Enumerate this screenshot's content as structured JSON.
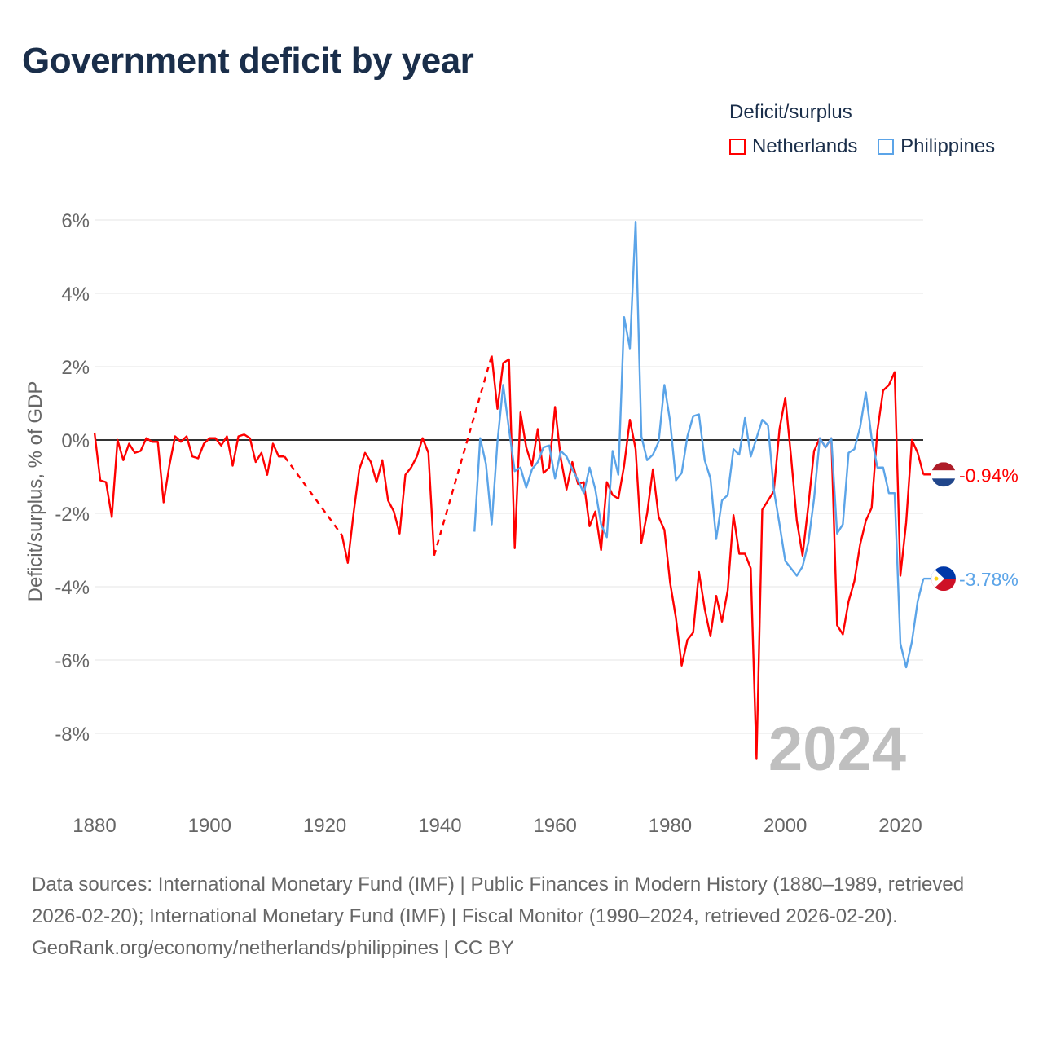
{
  "title": "Government deficit by year",
  "chart_data": {
    "type": "line",
    "title": "Government deficit by year",
    "ylabel": "Deficit/surplus, % of GDP",
    "xlabel": "",
    "xlim": [
      1880,
      2024
    ],
    "ylim": [
      -9.5,
      6.2
    ],
    "x_ticks": [
      "1880",
      "1900",
      "1920",
      "1940",
      "1960",
      "1980",
      "2000",
      "2020"
    ],
    "y_ticks": [
      "6%",
      "4%",
      "2%",
      "0%",
      "-2%",
      "-4%",
      "-6%",
      "-8%"
    ],
    "grid": true,
    "legend_title": "Deficit/surplus",
    "legend_position": "top-right",
    "year_watermark": "2024",
    "series": [
      {
        "name": "Netherlands",
        "color": "#ff0000",
        "end_label": "-0.94%",
        "points": [
          [
            1880,
            0.2
          ],
          [
            1881,
            -1.1
          ],
          [
            1882,
            -1.15
          ],
          [
            1883,
            -2.1
          ],
          [
            1884,
            0
          ],
          [
            1885,
            -0.55
          ],
          [
            1886,
            -0.1
          ],
          [
            1887,
            -0.35
          ],
          [
            1888,
            -0.3
          ],
          [
            1889,
            0.05
          ],
          [
            1890,
            -0.05
          ],
          [
            1891,
            -0.05
          ],
          [
            1892,
            -1.7
          ],
          [
            1893,
            -0.7
          ],
          [
            1894,
            0.1
          ],
          [
            1895,
            -0.05
          ],
          [
            1896,
            0.1
          ],
          [
            1897,
            -0.45
          ],
          [
            1898,
            -0.5
          ],
          [
            1899,
            -0.1
          ],
          [
            1900,
            0.05
          ],
          [
            1901,
            0.05
          ],
          [
            1902,
            -0.15
          ],
          [
            1903,
            0.1
          ],
          [
            1904,
            -0.7
          ],
          [
            1905,
            0.1
          ],
          [
            1906,
            0.15
          ],
          [
            1907,
            0.05
          ],
          [
            1908,
            -0.6
          ],
          [
            1909,
            -0.35
          ],
          [
            1910,
            -0.95
          ],
          [
            1911,
            -0.1
          ],
          [
            1912,
            -0.45
          ],
          [
            1913,
            -0.45
          ],
          [
            1923,
            -2.6
          ],
          [
            1924,
            -3.35
          ],
          [
            1925,
            -2.0
          ],
          [
            1926,
            -0.8
          ],
          [
            1927,
            -0.35
          ],
          [
            1928,
            -0.6
          ],
          [
            1929,
            -1.15
          ],
          [
            1930,
            -0.55
          ],
          [
            1931,
            -1.65
          ],
          [
            1932,
            -1.95
          ],
          [
            1933,
            -2.55
          ],
          [
            1934,
            -0.95
          ],
          [
            1935,
            -0.75
          ],
          [
            1936,
            -0.45
          ],
          [
            1937,
            0.05
          ],
          [
            1938,
            -0.35
          ],
          [
            1939,
            -3.15
          ],
          [
            1949,
            2.3
          ],
          [
            1950,
            0.85
          ],
          [
            1951,
            2.1
          ],
          [
            1952,
            2.2
          ],
          [
            1953,
            -2.95
          ],
          [
            1954,
            0.75
          ],
          [
            1955,
            -0.2
          ],
          [
            1956,
            -0.7
          ],
          [
            1957,
            0.3
          ],
          [
            1958,
            -0.9
          ],
          [
            1959,
            -0.75
          ],
          [
            1960,
            0.9
          ],
          [
            1961,
            -0.5
          ],
          [
            1962,
            -1.35
          ],
          [
            1963,
            -0.6
          ],
          [
            1964,
            -1.2
          ],
          [
            1965,
            -1.15
          ],
          [
            1966,
            -2.35
          ],
          [
            1967,
            -1.95
          ],
          [
            1968,
            -3.0
          ],
          [
            1969,
            -1.15
          ],
          [
            1970,
            -1.5
          ],
          [
            1971,
            -1.6
          ],
          [
            1972,
            -0.7
          ],
          [
            1973,
            0.55
          ],
          [
            1974,
            -0.25
          ],
          [
            1975,
            -2.8
          ],
          [
            1976,
            -2.0
          ],
          [
            1977,
            -0.8
          ],
          [
            1978,
            -2.1
          ],
          [
            1979,
            -2.45
          ],
          [
            1980,
            -3.9
          ],
          [
            1981,
            -4.85
          ],
          [
            1982,
            -6.15
          ],
          [
            1983,
            -5.45
          ],
          [
            1984,
            -5.25
          ],
          [
            1985,
            -3.6
          ],
          [
            1986,
            -4.6
          ],
          [
            1987,
            -5.35
          ],
          [
            1988,
            -4.25
          ],
          [
            1989,
            -4.95
          ],
          [
            1990,
            -4.1
          ],
          [
            1991,
            -2.05
          ],
          [
            1992,
            -3.1
          ],
          [
            1993,
            -3.1
          ],
          [
            1994,
            -3.5
          ],
          [
            1995,
            -8.7
          ],
          [
            1996,
            -1.9
          ],
          [
            1997,
            -1.65
          ],
          [
            1998,
            -1.4
          ],
          [
            1999,
            0.3
          ],
          [
            2000,
            1.15
          ],
          [
            2001,
            -0.45
          ],
          [
            2002,
            -2.2
          ],
          [
            2003,
            -3.15
          ],
          [
            2004,
            -1.8
          ],
          [
            2005,
            -0.3
          ],
          [
            2006,
            0.05
          ],
          [
            2007,
            -0.2
          ],
          [
            2008,
            0.05
          ],
          [
            2009,
            -5.05
          ],
          [
            2010,
            -5.3
          ],
          [
            2011,
            -4.4
          ],
          [
            2012,
            -3.85
          ],
          [
            2013,
            -2.85
          ],
          [
            2014,
            -2.2
          ],
          [
            2015,
            -1.85
          ],
          [
            2016,
            0.25
          ],
          [
            2017,
            1.35
          ],
          [
            2018,
            1.5
          ],
          [
            2019,
            1.85
          ],
          [
            2020,
            -3.7
          ],
          [
            2021,
            -2.25
          ],
          [
            2022,
            0.0
          ],
          [
            2023,
            -0.35
          ],
          [
            2024,
            -0.94
          ]
        ]
      },
      {
        "name": "Philippines",
        "color": "#5ba4e8",
        "end_label": "-3.78%",
        "points": [
          [
            1946,
            -2.5
          ],
          [
            1947,
            0.05
          ],
          [
            1948,
            -0.65
          ],
          [
            1949,
            -2.3
          ],
          [
            1950,
            -0.05
          ],
          [
            1951,
            1.5
          ],
          [
            1952,
            0.3
          ],
          [
            1953,
            -0.85
          ],
          [
            1954,
            -0.75
          ],
          [
            1955,
            -1.3
          ],
          [
            1956,
            -0.8
          ],
          [
            1957,
            -0.6
          ],
          [
            1958,
            -0.2
          ],
          [
            1959,
            -0.15
          ],
          [
            1960,
            -1.05
          ],
          [
            1961,
            -0.3
          ],
          [
            1962,
            -0.45
          ],
          [
            1963,
            -0.8
          ],
          [
            1964,
            -1.1
          ],
          [
            1965,
            -1.45
          ],
          [
            1966,
            -0.75
          ],
          [
            1967,
            -1.35
          ],
          [
            1968,
            -2.3
          ],
          [
            1969,
            -2.65
          ],
          [
            1970,
            -0.3
          ],
          [
            1971,
            -0.95
          ],
          [
            1972,
            3.35
          ],
          [
            1973,
            2.5
          ],
          [
            1974,
            5.95
          ],
          [
            1975,
            0.1
          ],
          [
            1976,
            -0.55
          ],
          [
            1977,
            -0.4
          ],
          [
            1978,
            -0.05
          ],
          [
            1979,
            1.5
          ],
          [
            1980,
            0.5
          ],
          [
            1981,
            -1.1
          ],
          [
            1982,
            -0.9
          ],
          [
            1983,
            0.1
          ],
          [
            1984,
            0.65
          ],
          [
            1985,
            0.7
          ],
          [
            1986,
            -0.55
          ],
          [
            1987,
            -1.05
          ],
          [
            1988,
            -2.7
          ],
          [
            1989,
            -1.65
          ],
          [
            1990,
            -1.5
          ],
          [
            1991,
            -0.25
          ],
          [
            1992,
            -0.4
          ],
          [
            1993,
            0.6
          ],
          [
            1994,
            -0.45
          ],
          [
            1995,
            0.05
          ],
          [
            1996,
            0.55
          ],
          [
            1997,
            0.4
          ],
          [
            1998,
            -1.35
          ],
          [
            1999,
            -2.3
          ],
          [
            2000,
            -3.3
          ],
          [
            2001,
            -3.5
          ],
          [
            2002,
            -3.7
          ],
          [
            2003,
            -3.45
          ],
          [
            2004,
            -2.8
          ],
          [
            2005,
            -1.6
          ],
          [
            2006,
            0.05
          ],
          [
            2007,
            -0.2
          ],
          [
            2008,
            0.05
          ],
          [
            2009,
            -2.55
          ],
          [
            2010,
            -2.3
          ],
          [
            2011,
            -0.35
          ],
          [
            2012,
            -0.25
          ],
          [
            2013,
            0.35
          ],
          [
            2014,
            1.3
          ],
          [
            2015,
            0.05
          ],
          [
            2016,
            -0.75
          ],
          [
            2017,
            -0.75
          ],
          [
            2018,
            -1.45
          ],
          [
            2019,
            -1.45
          ],
          [
            2020,
            -5.55
          ],
          [
            2021,
            -6.2
          ],
          [
            2022,
            -5.5
          ],
          [
            2023,
            -4.4
          ],
          [
            2024,
            -3.78
          ]
        ]
      }
    ]
  },
  "footer": {
    "sources": "Data sources: International Monetary Fund (IMF) | Public Finances in Modern History (1880–1989, retrieved 2026-02-20); International Monetary Fund (IMF) | Fiscal Monitor (1990–2024, retrieved 2026-02-20).",
    "credit": "GeoRank.org/economy/netherlands/philippines | CC BY"
  }
}
